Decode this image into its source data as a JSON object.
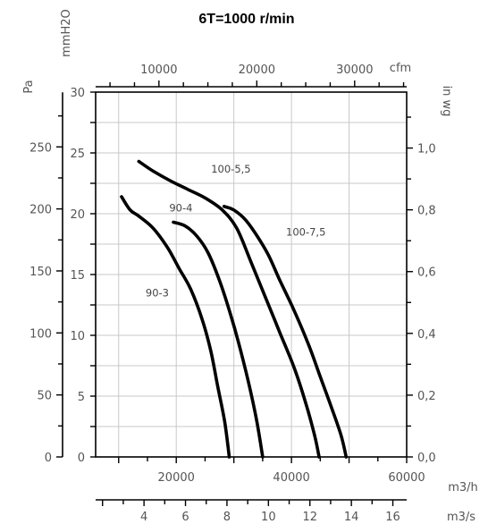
{
  "chart_data": {
    "type": "line",
    "title": "6T=1000 r/min",
    "grid": true,
    "x_axis_bottom": {
      "unit": "m3/h",
      "range": [
        6000,
        60000
      ],
      "tick_labels": [
        "20000",
        "40000",
        "60000"
      ]
    },
    "x_axis_bottom_secondary": {
      "unit": "m3/s",
      "range": [
        1.667,
        16.667
      ],
      "tick_labels": [
        "4",
        "6",
        "8",
        "10",
        "12",
        "14",
        "16"
      ]
    },
    "x_axis_top": {
      "unit": "cfm",
      "range": [
        3531,
        35315
      ],
      "tick_labels": [
        "10000",
        "20000",
        "30000"
      ]
    },
    "y_axis_left_outer": {
      "unit": "Pa",
      "range": [
        0,
        294.2
      ],
      "tick_labels": [
        "0",
        "50",
        "100",
        "150",
        "200",
        "250"
      ]
    },
    "y_axis_left_inner": {
      "unit": "mmH2O",
      "range": [
        0,
        30
      ],
      "tick_labels": [
        "0",
        "5",
        "10",
        "15",
        "20",
        "25",
        "30"
      ]
    },
    "y_axis_right": {
      "unit": "in wg",
      "range": [
        0,
        1.181
      ],
      "tick_labels": [
        "0,0",
        "0,2",
        "0,4",
        "0,6",
        "0,8",
        "1,0"
      ]
    },
    "series": [
      {
        "name": "90-3",
        "points": [
          [
            10500,
            21.4
          ],
          [
            12000,
            20.3
          ],
          [
            13500,
            19.8
          ],
          [
            16000,
            18.8
          ],
          [
            18500,
            17.2
          ],
          [
            20500,
            15.5
          ],
          [
            22500,
            13.8
          ],
          [
            24500,
            11.3
          ],
          [
            26000,
            8.7
          ],
          [
            27200,
            5.8
          ],
          [
            28400,
            2.9
          ],
          [
            29200,
            0
          ]
        ]
      },
      {
        "name": "90-4",
        "points": [
          [
            19500,
            19.3
          ],
          [
            21500,
            19
          ],
          [
            23500,
            18.2
          ],
          [
            25500,
            16.8
          ],
          [
            27500,
            14.5
          ],
          [
            29500,
            11.6
          ],
          [
            31200,
            8.7
          ],
          [
            32700,
            5.8
          ],
          [
            34000,
            2.9
          ],
          [
            35000,
            0
          ]
        ]
      },
      {
        "name": "100-5,5",
        "points": [
          [
            13500,
            24.3
          ],
          [
            16000,
            23.5
          ],
          [
            19000,
            22.7
          ],
          [
            22000,
            22
          ],
          [
            25000,
            21.3
          ],
          [
            28000,
            20.3
          ],
          [
            30500,
            18.8
          ],
          [
            33000,
            16
          ],
          [
            35500,
            13.1
          ],
          [
            38000,
            10.2
          ],
          [
            40500,
            7.3
          ],
          [
            42500,
            4.4
          ],
          [
            44000,
            1.8
          ],
          [
            44800,
            0
          ]
        ]
      },
      {
        "name": "100-7,5",
        "points": [
          [
            28300,
            20.6
          ],
          [
            30000,
            20.3
          ],
          [
            32000,
            19.5
          ],
          [
            34000,
            18.2
          ],
          [
            36000,
            16.6
          ],
          [
            38000,
            14.5
          ],
          [
            40500,
            12
          ],
          [
            43000,
            9.2
          ],
          [
            45000,
            6.6
          ],
          [
            47000,
            4
          ],
          [
            48600,
            1.8
          ],
          [
            49500,
            0
          ]
        ]
      }
    ]
  }
}
